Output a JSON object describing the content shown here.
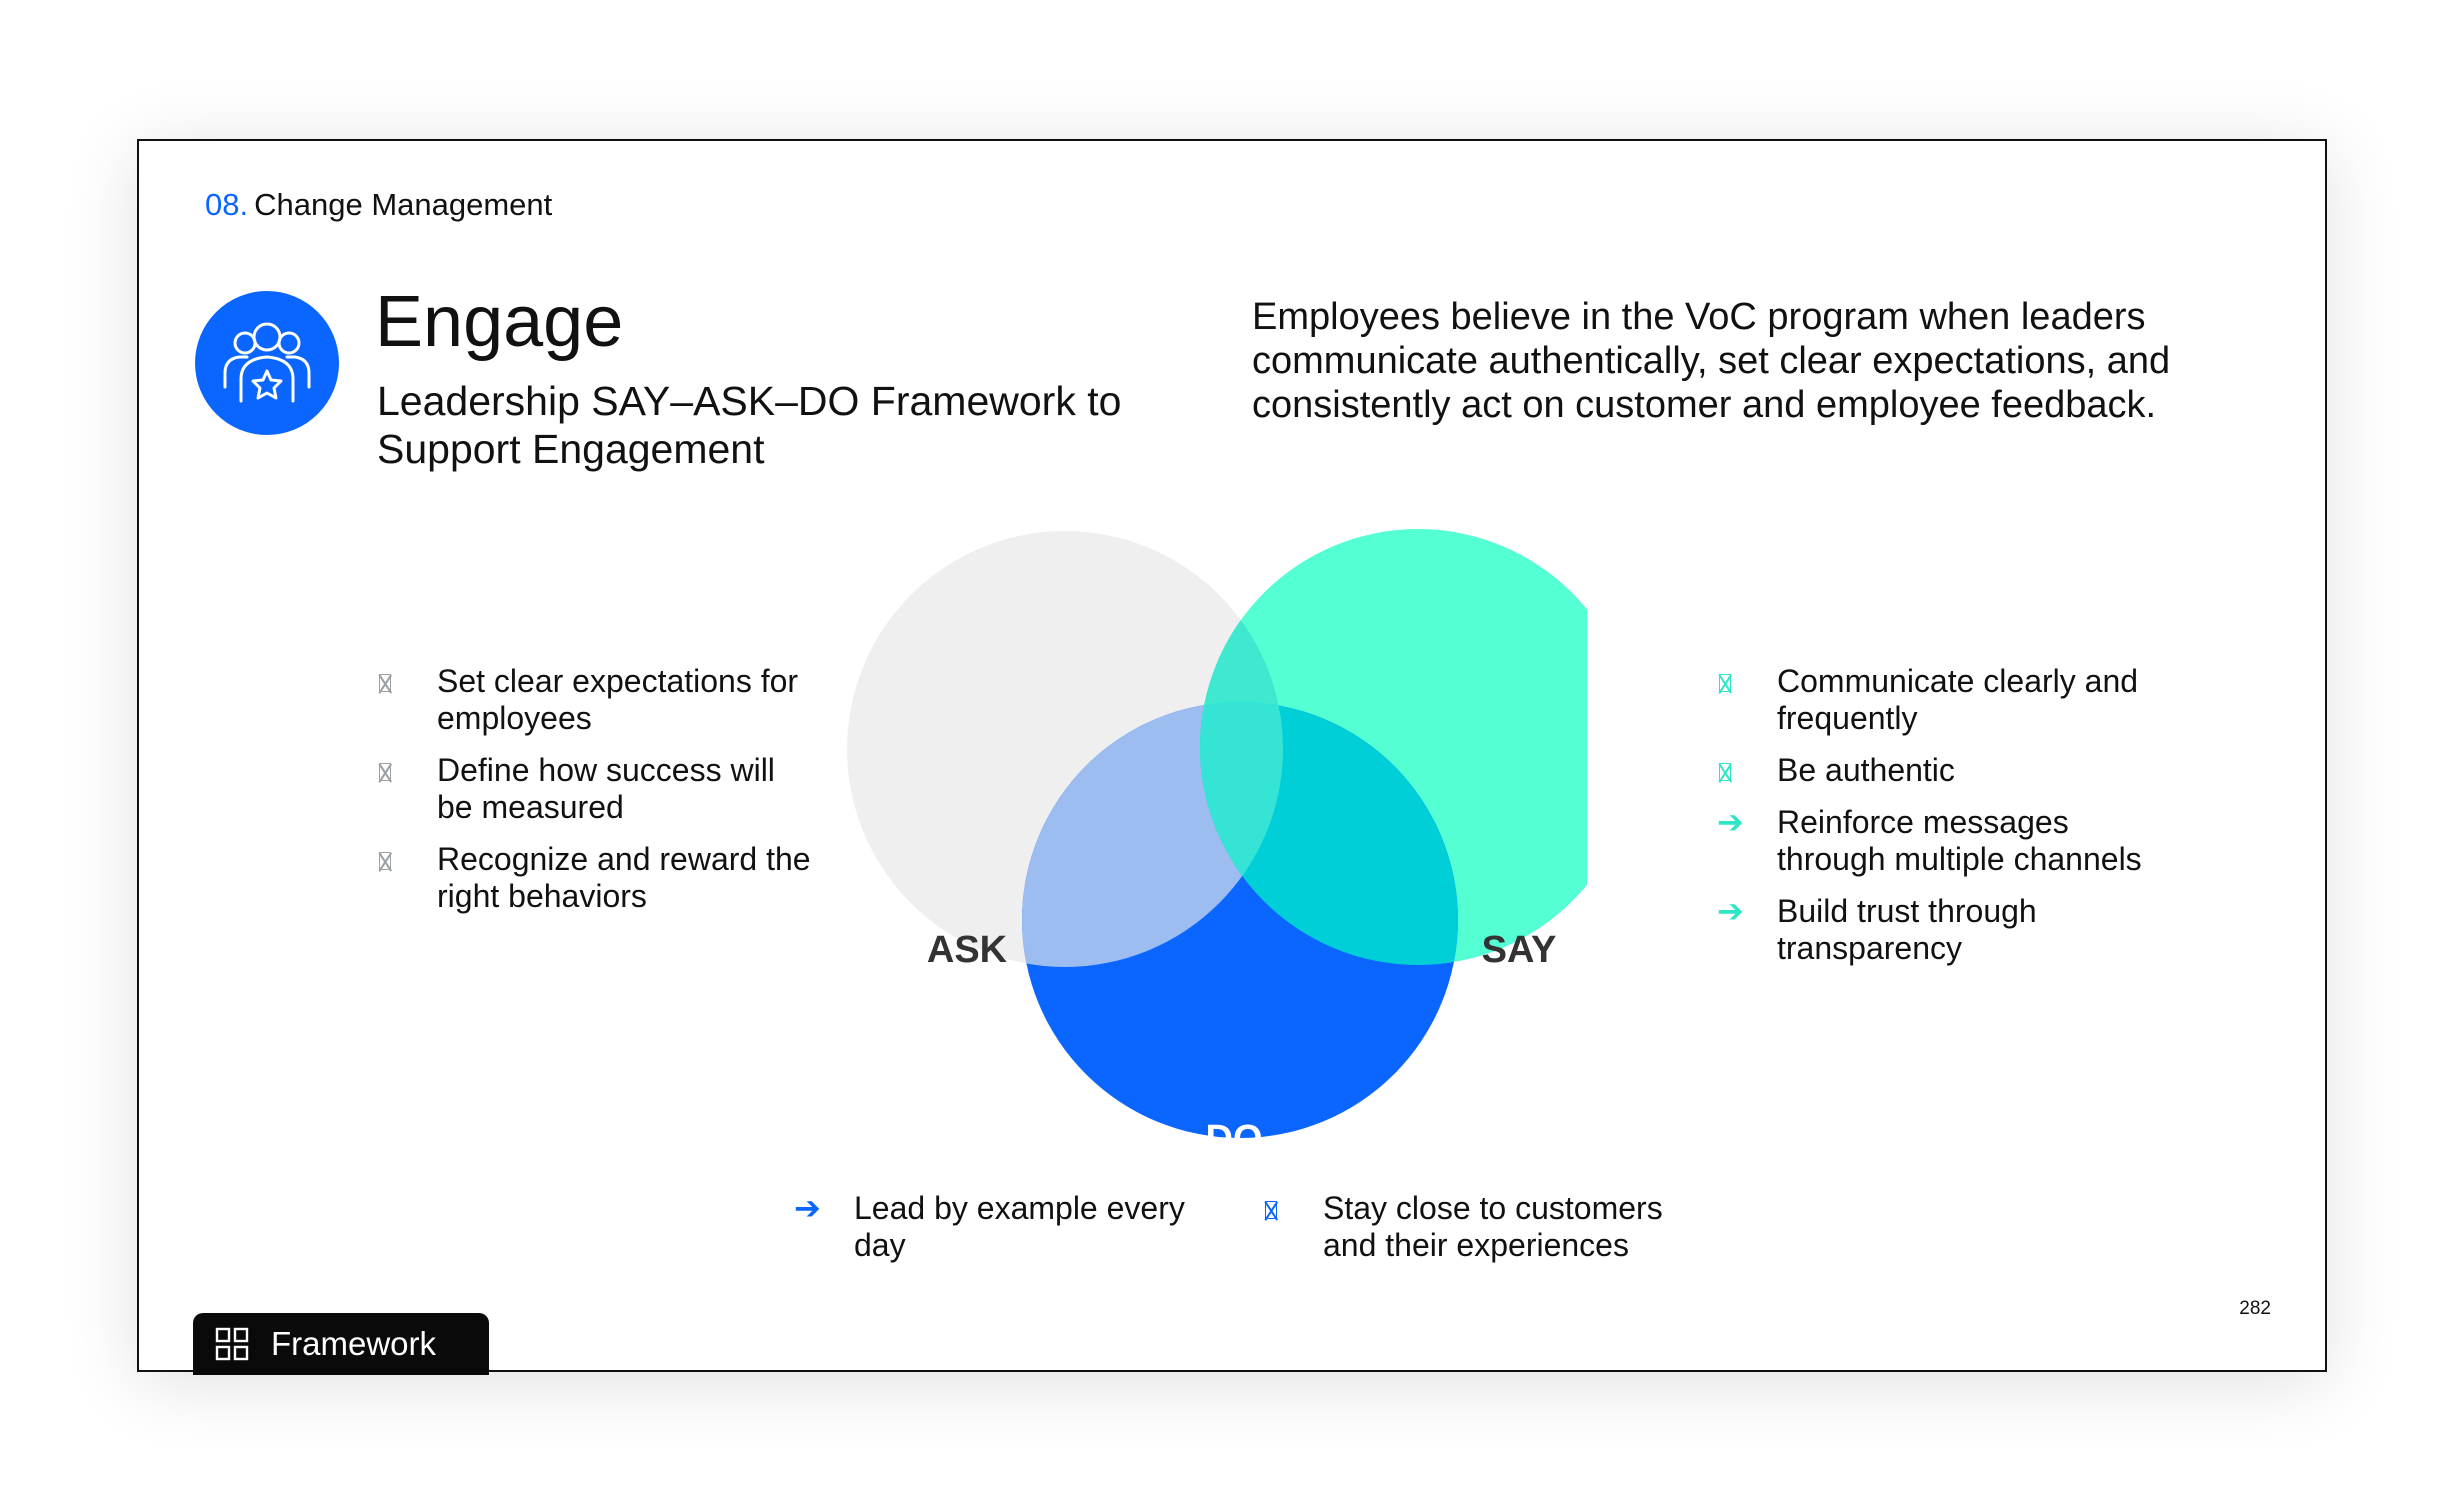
{
  "header": {
    "section_number": "08.",
    "section_title": "Change Management"
  },
  "hero": {
    "icon": "team-star-icon",
    "title": "Engage",
    "subtitle": "Leadership SAY–ASK–DO Framework to Support Engagement"
  },
  "intro_text": "Employees believe in the VoC program when leaders communicate authentically, set clear expectations, and consistently act on customer and employee feedback.",
  "venn": {
    "circles": [
      {
        "label": "ASK",
        "color": "#efefef",
        "label_color": "#333333"
      },
      {
        "label": "SAY",
        "color": "#55ffd4",
        "label_color": "#333333"
      },
      {
        "label": "DO",
        "color": "#0a66ff",
        "label_color": "#ffffff"
      }
    ],
    "overlap_colors": {
      "ask_do": "#9dbcf0",
      "ask_say": "#3ee9d0",
      "say_do": "#00cfd8"
    }
  },
  "ask_points": [
    {
      "text": "Set clear expectations for employees",
      "bullet": "box-glyph"
    },
    {
      "text": "Define how success will be measured",
      "bullet": "box-glyph"
    },
    {
      "text": "Recognize and reward the right behaviors",
      "bullet": "box-glyph"
    }
  ],
  "say_points": [
    {
      "text": "Communicate clearly and frequently",
      "bullet": "box-glyph"
    },
    {
      "text": "Be authentic",
      "bullet": "box-glyph"
    },
    {
      "text": "Reinforce messages through multiple channels",
      "bullet": "arrow-right-icon"
    },
    {
      "text": "Build trust through transparency",
      "bullet": "arrow-right-icon"
    }
  ],
  "do_points": [
    {
      "text": "Lead by example every day",
      "bullet": "arrow-right-icon"
    },
    {
      "text": "Stay close to customers and their experiences",
      "bullet": "box-glyph"
    }
  ],
  "colors": {
    "accent_blue": "#0a66ff",
    "accent_teal": "#2ee6c6",
    "muted_gray": "#9aa0a6"
  },
  "footer": {
    "page_number": "282",
    "tab_label": "Framework",
    "tab_icon": "grid-icon"
  }
}
